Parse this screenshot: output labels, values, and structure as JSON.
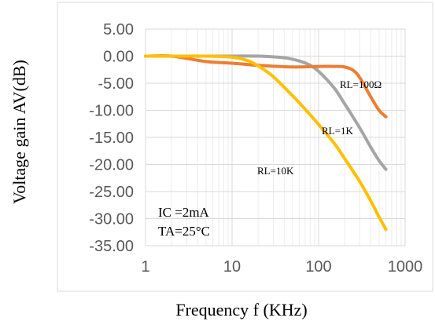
{
  "chart_data": {
    "type": "line",
    "xlabel": "Frequency f (KHz)",
    "ylabel": "Voltage gain AV(dB)",
    "xscale": "log",
    "xlim": [
      1,
      1000
    ],
    "ylim": [
      -35,
      5
    ],
    "x_ticks": [
      "1",
      "10",
      "100",
      "1000"
    ],
    "y_ticks": [
      "5.00",
      "0.00",
      "-5.00",
      "-10.00",
      "-15.00",
      "-20.00",
      "-25.00",
      "-30.00",
      "-35.00"
    ],
    "grid": true,
    "series": [
      {
        "name": "RL=100Ω",
        "color": "#ed7d31",
        "x": [
          1,
          2,
          5,
          10,
          20,
          50,
          100,
          150,
          200,
          250,
          300,
          400,
          500,
          600
        ],
        "y": [
          0,
          0,
          -1.0,
          -1.3,
          -1.7,
          -2.0,
          -1.9,
          -1.9,
          -2.0,
          -2.6,
          -4.0,
          -7.5,
          -10.0,
          -11.2
        ]
      },
      {
        "name": "RL=1K",
        "color": "#a5a5a5",
        "x": [
          1,
          2,
          5,
          10,
          20,
          40,
          60,
          80,
          100,
          150,
          200,
          300,
          400,
          500,
          600
        ],
        "y": [
          0,
          0,
          0,
          0,
          0,
          -0.3,
          -0.9,
          -1.7,
          -2.8,
          -5.8,
          -8.8,
          -13.3,
          -16.8,
          -19.3,
          -20.9
        ]
      },
      {
        "name": "RL=10K",
        "color": "#ffc000",
        "x": [
          1,
          2,
          5,
          10,
          15,
          20,
          30,
          50,
          70,
          100,
          150,
          200,
          300,
          400,
          500,
          600
        ],
        "y": [
          0,
          0,
          0,
          -0.2,
          -0.8,
          -1.8,
          -3.8,
          -7.3,
          -9.8,
          -12.6,
          -16.0,
          -18.9,
          -23.2,
          -26.7,
          -29.7,
          -32.0
        ]
      }
    ],
    "annotations": [
      "IC =2mA",
      "TA=25°C"
    ]
  }
}
